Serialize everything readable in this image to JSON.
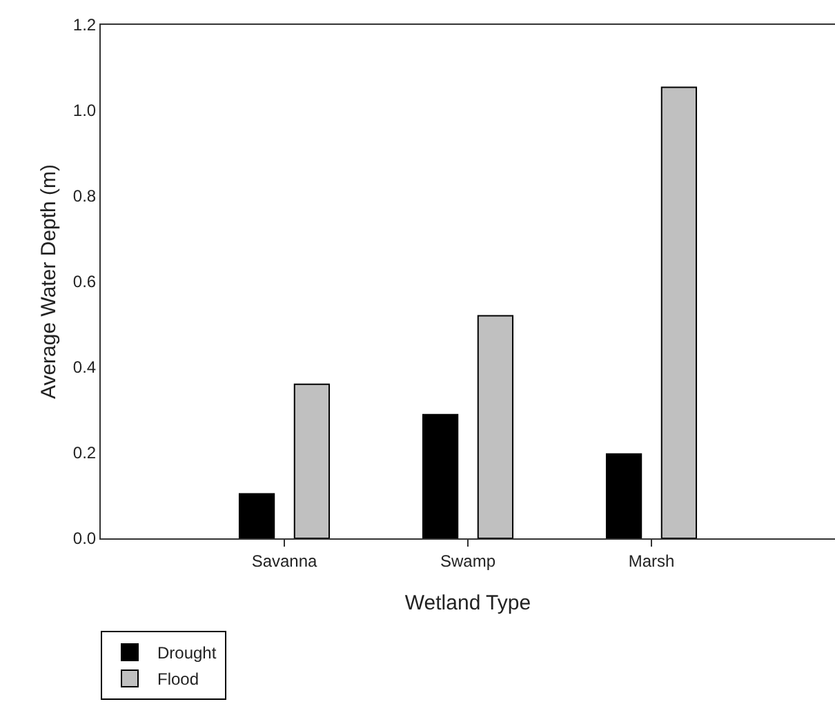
{
  "chart_data": {
    "type": "bar",
    "xlabel": "Wetland Type",
    "ylabel": "Average Water Depth (m)",
    "categories": [
      "Savanna",
      "Swamp",
      "Marsh"
    ],
    "series": [
      {
        "name": "Drought",
        "color": "#000000",
        "values": [
          0.104,
          0.289,
          0.197
        ]
      },
      {
        "name": "Flood",
        "color": "#c0c0c0",
        "values": [
          0.36,
          0.52,
          1.054
        ]
      }
    ],
    "ylim": [
      0,
      1.2
    ],
    "yticks": [
      {
        "value": 0,
        "label": "0.0"
      },
      {
        "value": 0.2,
        "label": "0.2"
      },
      {
        "value": 0.4,
        "label": "0.4"
      },
      {
        "value": 0.6,
        "label": "0.6"
      },
      {
        "value": 0.8,
        "label": "0.8"
      },
      {
        "value": 1.0,
        "label": "1.0"
      },
      {
        "value": 1.2,
        "label": "1.2"
      }
    ],
    "legend": "bottom left"
  }
}
